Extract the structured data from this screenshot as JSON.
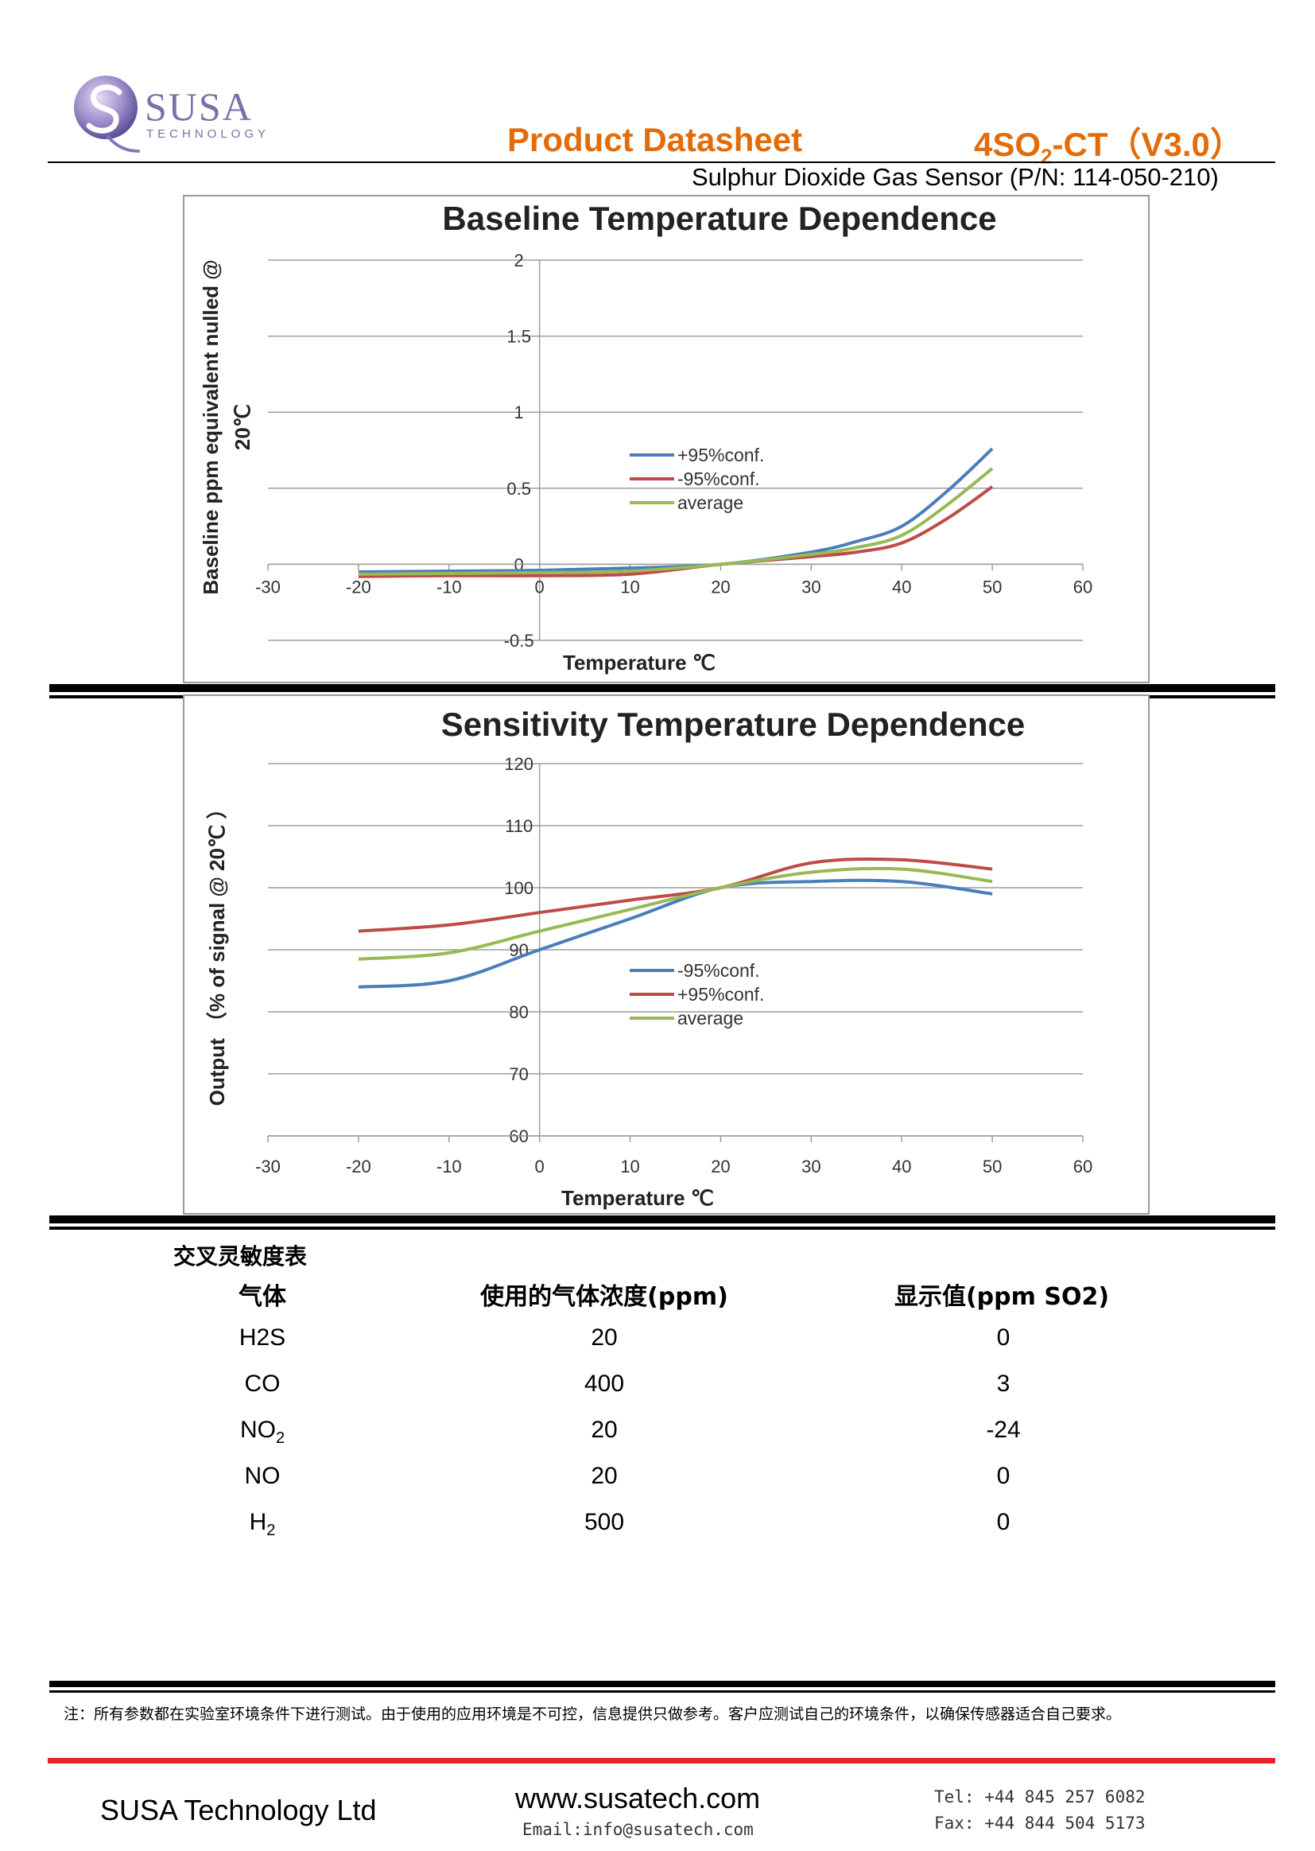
{
  "header": {
    "logo_word": "SUSA",
    "logo_sub": "TECHNOLOGY",
    "doc_type": "Product Datasheet",
    "model_prefix": "4SO",
    "model_sub": "2",
    "model_suffix": "-CT（V3.0）",
    "subtitle": "Sulphur Dioxide Gas Sensor (P/N: 114-050-210)"
  },
  "colors": {
    "accent": "#e36c0a",
    "brand": "#7b6fa8",
    "series_blue": "#4a7ebb",
    "series_red": "#be4b48",
    "series_green": "#98b954",
    "footer_red": "#e8232a"
  },
  "chart_data": [
    {
      "type": "line",
      "title": "Baseline Temperature Dependence",
      "xlabel": "Temperature ℃",
      "ylabel_line1": "Baseline ppm equivalent nulled @",
      "ylabel_line2": "20℃",
      "xlim": [
        -30,
        60
      ],
      "ylim": [
        -0.5,
        2
      ],
      "xticks": [
        "-30",
        "-20",
        "-10",
        "0",
        "10",
        "20",
        "30",
        "40",
        "50",
        "60"
      ],
      "yticks": [
        "2",
        "1.5",
        "1",
        "0.5",
        "0",
        "-0.5"
      ],
      "grid": true,
      "legend": "center",
      "x": [
        -20,
        -10,
        0,
        10,
        20,
        30,
        35,
        40,
        45,
        50
      ],
      "series": [
        {
          "name": "+95%conf.",
          "color": "#4a7ebb",
          "values": [
            -0.05,
            -0.045,
            -0.04,
            -0.025,
            0,
            0.08,
            0.15,
            0.25,
            0.48,
            0.76
          ]
        },
        {
          "name": "-95%conf.",
          "color": "#be4b48",
          "values": [
            -0.08,
            -0.075,
            -0.075,
            -0.065,
            0,
            0.05,
            0.08,
            0.14,
            0.3,
            0.51
          ]
        },
        {
          "name": "average",
          "color": "#98b954",
          "values": [
            -0.065,
            -0.06,
            -0.055,
            -0.045,
            0,
            0.065,
            0.11,
            0.19,
            0.39,
            0.63
          ]
        }
      ]
    },
    {
      "type": "line",
      "title": "Sensitivity Temperature Dependence",
      "xlabel": "Temperature ℃",
      "ylabel_line1": "Output （% of signal  @ 20℃ ）",
      "xlim": [
        -30,
        60
      ],
      "ylim": [
        60,
        120
      ],
      "xticks": [
        "-30",
        "-20",
        "-10",
        "0",
        "10",
        "20",
        "30",
        "40",
        "50",
        "60"
      ],
      "yticks": [
        "120",
        "110",
        "100",
        "90",
        "80",
        "70",
        "60"
      ],
      "grid": true,
      "legend": "center",
      "x": [
        -20,
        -10,
        0,
        10,
        20,
        30,
        40,
        50
      ],
      "series": [
        {
          "name": "-95%conf.",
          "color": "#4a7ebb",
          "values": [
            84,
            85,
            90,
            95,
            100,
            101,
            101,
            99
          ]
        },
        {
          "name": "+95%conf.",
          "color": "#be4b48",
          "values": [
            93,
            94,
            96,
            98,
            100,
            104,
            104.5,
            103
          ]
        },
        {
          "name": "average",
          "color": "#98b954",
          "values": [
            88.5,
            89.5,
            93,
            96.5,
            100,
            102.5,
            103,
            101
          ]
        }
      ]
    }
  ],
  "cross_table": {
    "title": "交叉灵敏度表",
    "headers": [
      "气体",
      "使用的气体浓度(ppm)",
      "显示值(ppm SO2)"
    ],
    "rows": [
      {
        "gas": "H2S",
        "gas_sub": "",
        "conc": "20",
        "display": "0"
      },
      {
        "gas": "CO",
        "gas_sub": "",
        "conc": "400",
        "display": "3"
      },
      {
        "gas": "NO",
        "gas_sub": "2",
        "conc": "20",
        "display": "-24"
      },
      {
        "gas": "NO",
        "gas_sub": "",
        "conc": "20",
        "display": "0"
      },
      {
        "gas": "H",
        "gas_sub": "2",
        "conc": "500",
        "display": "0"
      }
    ]
  },
  "footer": {
    "note": "注：所有参数都在实验室环境条件下进行测试。由于使用的应用环境是不可控，信息提供只做参考。客户应测试自己的环境条件，以确保传感器适合自己要求。",
    "company": "SUSA Technology Ltd",
    "website": "www.susatech.com",
    "email": "Email:info@susatech.com",
    "tel": "Tel: +44 845 257 6082",
    "fax": "Fax: +44 844 504 5173"
  }
}
